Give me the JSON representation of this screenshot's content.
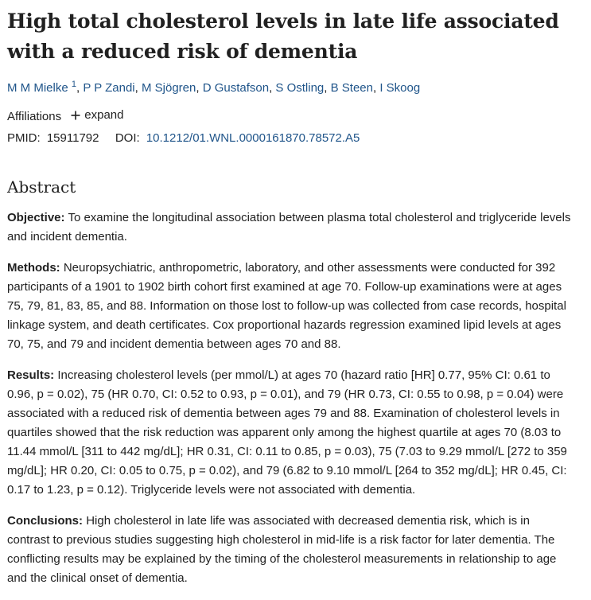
{
  "article": {
    "title_line1": "High total cholesterol levels in late life associated",
    "title_line2": "with a reduced risk of dementia",
    "authors": [
      {
        "name": "M M Mielke",
        "sup": "1"
      },
      {
        "name": "P P Zandi"
      },
      {
        "name": "M Sjögren"
      },
      {
        "name": "D Gustafson"
      },
      {
        "name": "S Ostling"
      },
      {
        "name": "B Steen"
      },
      {
        "name": "I Skoog"
      }
    ],
    "affiliations_label": "Affiliations",
    "expand_label": "expand",
    "pmid_label": "PMID:",
    "pmid_value": "15911792",
    "doi_label": "DOI:",
    "doi_value": "10.1212/01.WNL.0000161870.78572.A5"
  },
  "abstract": {
    "heading": "Abstract",
    "objective_label": "Objective:",
    "objective_text": "To examine the longitudinal association between plasma total cholesterol and triglyceride levels and incident dementia.",
    "methods_label": "Methods:",
    "methods_text": "Neuropsychiatric, anthropometric, laboratory, and other assessments were conducted for 392 participants of a 1901 to 1902 birth cohort first examined at age 70. Follow-up examinations were at ages 75, 79, 81, 83, 85, and 88. Information on those lost to follow-up was collected from case records, hospital linkage system, and death certificates. Cox proportional hazards regression examined lipid levels at ages 70, 75, and 79 and incident dementia between ages 70 and 88.",
    "results_label": "Results:",
    "results_text": "Increasing cholesterol levels (per mmol/L) at ages 70 (hazard ratio [HR] 0.77, 95% CI: 0.61 to 0.96, p = 0.02), 75 (HR 0.70, CI: 0.52 to 0.93, p = 0.01), and 79 (HR 0.73, CI: 0.55 to 0.98, p = 0.04) were associated with a reduced risk of dementia between ages 79 and 88. Examination of cholesterol levels in quartiles showed that the risk reduction was apparent only among the highest quartile at ages 70 (8.03 to 11.44 mmol/L [311 to 442 mg/dL]; HR 0.31, CI: 0.11 to 0.85, p = 0.03), 75 (7.03 to 9.29 mmol/L [272 to 359 mg/dL]; HR 0.20, CI: 0.05 to 0.75, p = 0.02), and 79 (6.82 to 9.10 mmol/L [264 to 352 mg/dL]; HR 0.45, CI: 0.17 to 1.23, p = 0.12). Triglyceride levels were not associated with dementia.",
    "conclusions_label": "Conclusions:",
    "conclusions_text": "High cholesterol in late life was associated with decreased dementia risk, which is in contrast to previous studies suggesting high cholesterol in mid-life is a risk factor for later dementia. The conflicting results may be explained by the timing of the cholesterol measurements in relationship to age and the clinical onset of dementia."
  },
  "colors": {
    "link": "#20558a",
    "text": "#212121"
  },
  "icons": {
    "expand": "plus-icon"
  }
}
